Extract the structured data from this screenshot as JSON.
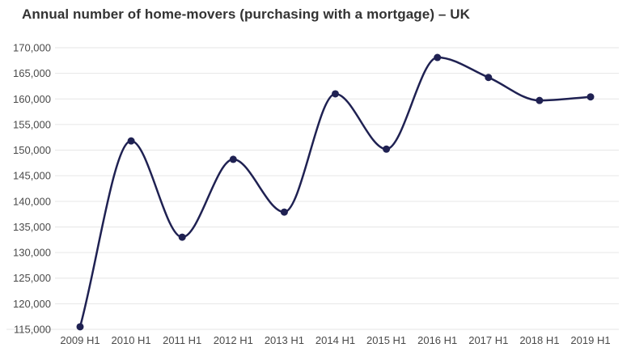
{
  "page": {
    "background": "#ffffff"
  },
  "chart_data": {
    "type": "line",
    "title": "Annual number of home-movers (purchasing with a mortgage) – UK",
    "categories": [
      "2009 H1",
      "2010 H1",
      "2011 H1",
      "2012 H1",
      "2013 H1",
      "2014 H1",
      "2015 H1",
      "2016 H1",
      "2017 H1",
      "2018 H1",
      "2019 H1"
    ],
    "values": [
      115500,
      151800,
      133000,
      148200,
      137900,
      161000,
      150200,
      168100,
      164200,
      159700,
      160400
    ],
    "series_name": "Annual number of home-movers (UK, purchasing with a mortgage)",
    "xlabel": "",
    "ylabel": "",
    "ylim": [
      115000,
      170000
    ],
    "y_ticks": [
      115000,
      120000,
      125000,
      130000,
      135000,
      140000,
      145000,
      150000,
      155000,
      160000,
      165000,
      170000
    ],
    "y_tick_labels": [
      "115,000",
      "120,000",
      "125,000",
      "130,000",
      "135,000",
      "140,000",
      "145,000",
      "150,000",
      "155,000",
      "160,000",
      "165,000",
      "170,000"
    ],
    "grid": "horizontal",
    "legend": "none",
    "curve": "monotone",
    "colors": {
      "line": "#1f2152",
      "points": "#1f2152",
      "grid": "#e6e6e6",
      "axis_labels": "#4a4a4a",
      "title": "#333333",
      "background": "#ffffff"
    }
  }
}
